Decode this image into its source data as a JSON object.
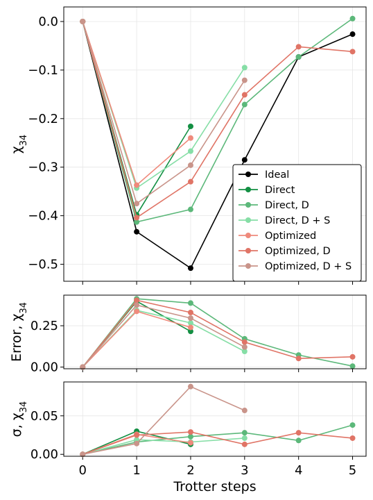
{
  "chart_data": [
    {
      "type": "line",
      "panel": "chi",
      "ylabel": "χ34",
      "ylim": [
        -0.535,
        0.03
      ],
      "yticks": [
        0.0,
        -0.1,
        -0.2,
        -0.3,
        -0.4,
        -0.5
      ],
      "ytick_labels": [
        "0.0",
        "−0.1",
        "−0.2",
        "−0.3",
        "−0.4",
        "−0.5"
      ],
      "xlim": [
        -0.35,
        5.25
      ],
      "xticks": [
        0,
        1,
        2,
        3,
        4,
        5
      ],
      "grid": true,
      "legend": "bottom-right",
      "series": [
        {
          "name": "Ideal",
          "color": "#000000",
          "x": [
            0,
            1,
            2,
            3,
            4,
            5
          ],
          "y": [
            0.0,
            -0.433,
            -0.508,
            -0.285,
            -0.073,
            -0.026
          ]
        },
        {
          "name": "Direct",
          "color": "#138f43",
          "x": [
            0,
            1,
            2
          ],
          "y": [
            0.0,
            -0.398,
            -0.216
          ]
        },
        {
          "name": "Direct, D",
          "color": "#5cb87a",
          "x": [
            0,
            1,
            2,
            3,
            4,
            5
          ],
          "y": [
            0.0,
            -0.413,
            -0.387,
            -0.171,
            -0.073,
            0.006
          ]
        },
        {
          "name": "Direct, D + S",
          "color": "#86dea6",
          "x": [
            0,
            1,
            2,
            3
          ],
          "y": [
            0.0,
            -0.343,
            -0.267,
            -0.095
          ]
        },
        {
          "name": "Optimized",
          "color": "#ef8a7c",
          "x": [
            0,
            1,
            2
          ],
          "y": [
            0.0,
            -0.337,
            -0.24
          ]
        },
        {
          "name": "Optimized, D",
          "color": "#e07466",
          "x": [
            0,
            1,
            2,
            3,
            4,
            5
          ],
          "y": [
            0.0,
            -0.404,
            -0.33,
            -0.151,
            -0.052,
            -0.062
          ]
        },
        {
          "name": "Optimized, D + S",
          "color": "#c9948a",
          "x": [
            0,
            1,
            2,
            3
          ],
          "y": [
            0.0,
            -0.375,
            -0.296,
            -0.121
          ]
        }
      ]
    },
    {
      "type": "line",
      "panel": "error",
      "ylabel": "Error, χ34",
      "ylim": [
        -0.01,
        0.435
      ],
      "yticks": [
        0.0,
        0.25
      ],
      "ytick_labels": [
        "0.00",
        "0.25"
      ],
      "xlim": [
        -0.35,
        5.25
      ],
      "xticks": [
        0,
        1,
        2,
        3,
        4,
        5
      ],
      "grid": true,
      "series": [
        {
          "name": "Direct",
          "color": "#138f43",
          "x": [
            0,
            1,
            2
          ],
          "y": [
            0.0,
            0.398,
            0.216
          ]
        },
        {
          "name": "Direct, D",
          "color": "#5cb87a",
          "x": [
            0,
            1,
            2,
            3,
            4,
            5
          ],
          "y": [
            0.0,
            0.413,
            0.387,
            0.171,
            0.073,
            0.006
          ]
        },
        {
          "name": "Direct, D + S",
          "color": "#86dea6",
          "x": [
            0,
            1,
            2,
            3
          ],
          "y": [
            0.0,
            0.343,
            0.267,
            0.095
          ]
        },
        {
          "name": "Optimized",
          "color": "#ef8a7c",
          "x": [
            0,
            1,
            2
          ],
          "y": [
            0.0,
            0.337,
            0.24
          ]
        },
        {
          "name": "Optimized, D",
          "color": "#e07466",
          "x": [
            0,
            1,
            2,
            3,
            4,
            5
          ],
          "y": [
            0.0,
            0.404,
            0.33,
            0.151,
            0.052,
            0.062
          ]
        },
        {
          "name": "Optimized, D + S",
          "color": "#c9948a",
          "x": [
            0,
            1,
            2,
            3
          ],
          "y": [
            0.0,
            0.375,
            0.296,
            0.121
          ]
        }
      ]
    },
    {
      "type": "line",
      "panel": "sigma",
      "ylabel": "σ, χ34",
      "ylim": [
        -0.0025,
        0.094
      ],
      "yticks": [
        0.0,
        0.05
      ],
      "ytick_labels": [
        "0.00",
        "0.05"
      ],
      "xlim": [
        -0.35,
        5.25
      ],
      "xticks": [
        0,
        1,
        2,
        3,
        4,
        5
      ],
      "xtick_labels": [
        "0",
        "1",
        "2",
        "3",
        "4",
        "5"
      ],
      "xlabel": "Trotter steps",
      "grid": true,
      "series": [
        {
          "name": "Direct",
          "color": "#138f43",
          "x": [
            0,
            1,
            2
          ],
          "y": [
            0.0,
            0.03,
            0.013
          ]
        },
        {
          "name": "Direct, D",
          "color": "#5cb87a",
          "x": [
            0,
            1,
            2,
            3,
            4,
            5
          ],
          "y": [
            0.0,
            0.016,
            0.023,
            0.028,
            0.018,
            0.038
          ]
        },
        {
          "name": "Direct, D + S",
          "color": "#86dea6",
          "x": [
            0,
            1,
            2,
            3
          ],
          "y": [
            0.0,
            0.019,
            0.016,
            0.021
          ]
        },
        {
          "name": "Optimized",
          "color": "#ef8a7c",
          "x": [
            0,
            1,
            2
          ],
          "y": [
            0.0,
            0.026,
            0.015
          ]
        },
        {
          "name": "Optimized, D",
          "color": "#e07466",
          "x": [
            0,
            1,
            2,
            3,
            4,
            5
          ],
          "y": [
            0.0,
            0.025,
            0.029,
            0.013,
            0.028,
            0.021
          ]
        },
        {
          "name": "Optimized, D + S",
          "color": "#c9948a",
          "x": [
            0,
            1,
            2,
            3
          ],
          "y": [
            0.0,
            0.014,
            0.088,
            0.057
          ]
        }
      ]
    }
  ]
}
